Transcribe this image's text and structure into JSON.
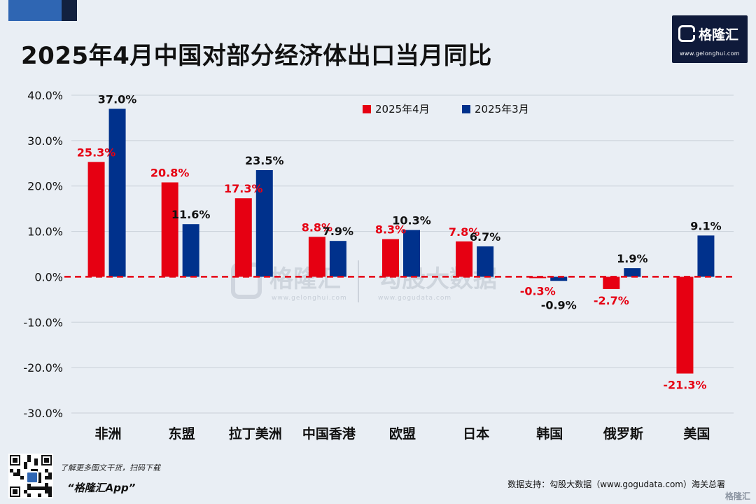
{
  "title": "2025年4月中国对部分经济体出口当月同比",
  "logo": {
    "name": "格隆汇",
    "url": "www.gelonghui.com"
  },
  "watermark": {
    "brand": "格隆汇",
    "brand_url": "www.gelonghui.com",
    "data_brand": "勾股大数据",
    "data_url": "www.gogudata.com"
  },
  "footer": {
    "promo": "了解更多图文干货，扫码下载",
    "app": "“格隆汇App”",
    "source": "数据支持：勾股大数据（www.gogudata.com）海关总署",
    "corner": "格隆汇"
  },
  "colors": {
    "apr": "#e60012",
    "mar": "#00318c",
    "apr_label": "#e60012",
    "mar_label": "#111111",
    "zero_line": "#e60012",
    "grid": "#c9d0d8"
  },
  "chart_data": {
    "type": "bar",
    "title": "2025年4月中国对部分经济体出口当月同比",
    "categories": [
      "非洲",
      "东盟",
      "拉丁美洲",
      "中国香港",
      "欧盟",
      "日本",
      "韩国",
      "俄罗斯",
      "美国"
    ],
    "series": [
      {
        "name": "2025年4月",
        "values": [
          25.3,
          20.8,
          17.3,
          8.8,
          8.3,
          7.8,
          -0.3,
          -2.7,
          -21.3
        ],
        "labels": [
          "25.3%",
          "20.8%",
          "17.3%",
          "8.8%",
          "8.3%",
          "7.8%",
          "-0.3%",
          "-2.7%",
          "-21.3%"
        ]
      },
      {
        "name": "2025年3月",
        "values": [
          37.0,
          11.6,
          23.5,
          7.9,
          10.3,
          6.7,
          -0.9,
          1.9,
          9.1
        ],
        "labels": [
          "37.0%",
          "11.6%",
          "23.5%",
          "7.9%",
          "10.3%",
          "6.7%",
          "-0.9%",
          "1.9%",
          "9.1%"
        ]
      }
    ],
    "yticks": [
      40,
      30,
      20,
      10,
      0,
      -10,
      -20,
      -30
    ],
    "ytick_labels": [
      "40.0%",
      "30.0%",
      "20.0%",
      "10.0%",
      "0.0%",
      "-10.0%",
      "-20.0%",
      "-30.0%"
    ],
    "ylim": [
      -30,
      40
    ],
    "grid": true,
    "legend_position": "top-center"
  }
}
